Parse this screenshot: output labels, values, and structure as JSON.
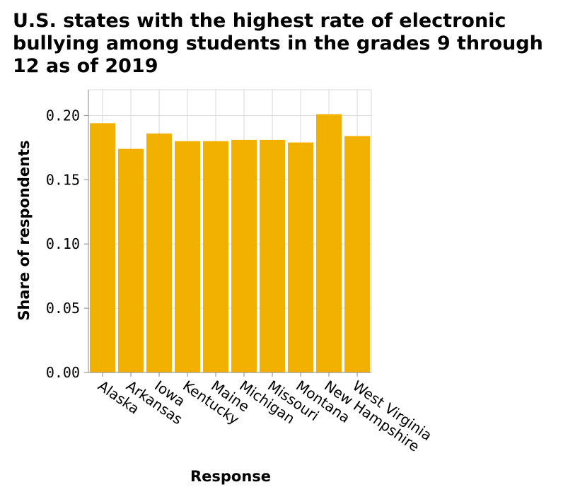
{
  "chart_data": {
    "type": "bar",
    "title": "U.S. states with the highest rate of electronic\nbullying among students in the grades 9 through\n12 as of 2019",
    "xlabel": "Response",
    "ylabel": "Share of respondents",
    "categories": [
      "Alaska",
      "Arkansas",
      "Iowa",
      "Kentucky",
      "Maine",
      "Michigan",
      "Missouri",
      "Montana",
      "New Hampshire",
      "West Virginia"
    ],
    "values": [
      0.194,
      0.174,
      0.186,
      0.18,
      0.18,
      0.181,
      0.181,
      0.179,
      0.201,
      0.184
    ],
    "ylim": [
      0,
      0.22
    ],
    "yticks": [
      0.0,
      0.05,
      0.1,
      0.15,
      0.2
    ],
    "ytick_labels": [
      "0.00",
      "0.05",
      "0.10",
      "0.15",
      "0.20"
    ],
    "grid": true,
    "bar_color": "#F2B100",
    "grid_color": "#d9d9d9"
  }
}
